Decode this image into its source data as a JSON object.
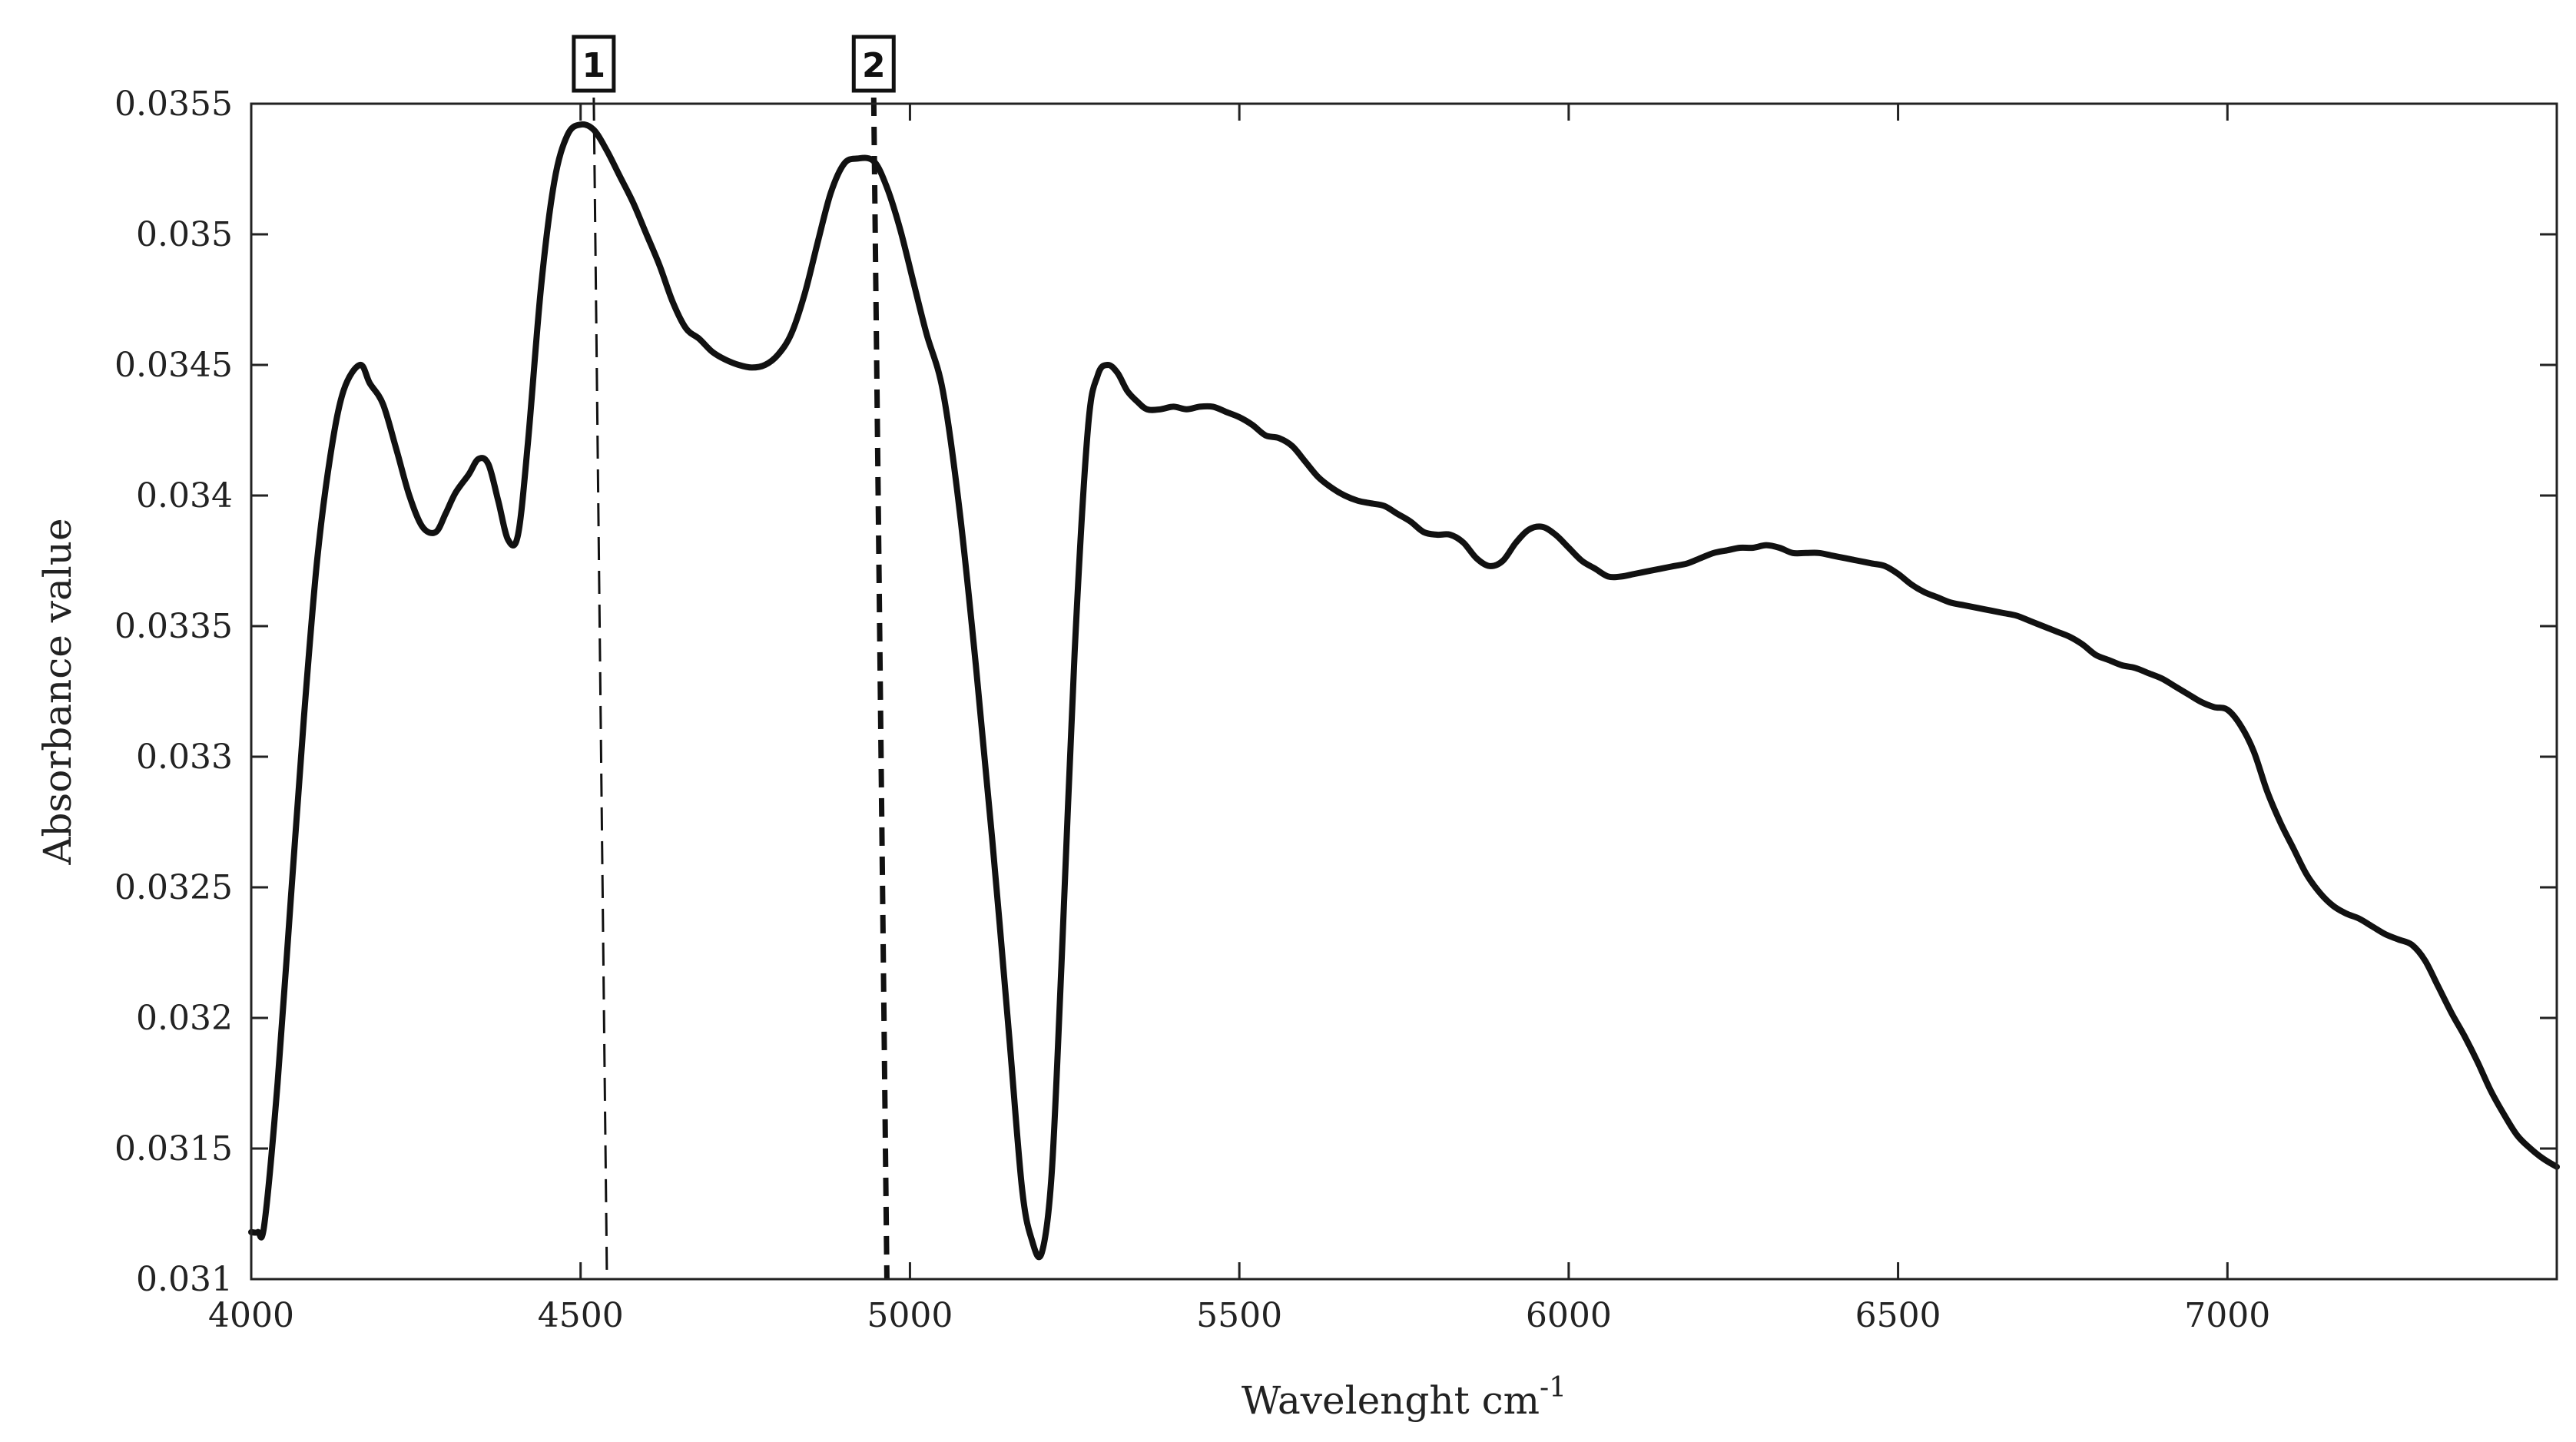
{
  "chart_data": {
    "type": "line",
    "xlabel": "Wavelenght cm",
    "xlabel_sup": "-1",
    "ylabel": "Absorbance value",
    "xlim": [
      4000,
      7500
    ],
    "ylim": [
      0.031,
      0.0355
    ],
    "x_ticks": [
      4000,
      4500,
      5000,
      5500,
      6000,
      6500,
      7000
    ],
    "x_tick_labels": [
      "4000",
      "4500",
      "5000",
      "5500",
      "6000",
      "6500",
      "7000"
    ],
    "y_ticks": [
      0.031,
      0.0315,
      0.032,
      0.0325,
      0.033,
      0.0335,
      0.034,
      0.0345,
      0.035,
      0.0355
    ],
    "y_tick_labels": [
      "0.031",
      "0.0315",
      "0.032",
      "0.0325",
      "0.033",
      "0.0335",
      "0.034",
      "0.0345",
      "0.035",
      "0.0355"
    ],
    "grid": false,
    "line_color": "#111111",
    "series": [
      {
        "x": [
          4000,
          4010,
          4020,
          4040,
          4060,
          4080,
          4100,
          4120,
          4140,
          4165,
          4180,
          4200,
          4220,
          4240,
          4260,
          4280,
          4295,
          4310,
          4330,
          4345,
          4360,
          4375,
          4390,
          4405,
          4420,
          4440,
          4460,
          4480,
          4500,
          4520,
          4540,
          4560,
          4580,
          4600,
          4620,
          4640,
          4660,
          4680,
          4700,
          4720,
          4740,
          4760,
          4780,
          4800,
          4820,
          4840,
          4860,
          4880,
          4900,
          4920,
          4945,
          4965,
          4985,
          5005,
          5025,
          5050,
          5075,
          5100,
          5125,
          5150,
          5170,
          5185,
          5200,
          5215,
          5230,
          5250,
          5270,
          5285,
          5300,
          5315,
          5330,
          5345,
          5360,
          5380,
          5400,
          5420,
          5440,
          5460,
          5480,
          5500,
          5520,
          5540,
          5560,
          5580,
          5600,
          5620,
          5640,
          5660,
          5680,
          5700,
          5720,
          5740,
          5760,
          5780,
          5800,
          5820,
          5840,
          5860,
          5880,
          5900,
          5920,
          5940,
          5960,
          5980,
          6000,
          6020,
          6040,
          6060,
          6080,
          6100,
          6120,
          6140,
          6160,
          6180,
          6200,
          6220,
          6240,
          6260,
          6280,
          6300,
          6320,
          6340,
          6360,
          6380,
          6400,
          6420,
          6440,
          6460,
          6480,
          6500,
          6520,
          6540,
          6560,
          6580,
          6600,
          6620,
          6640,
          6660,
          6680,
          6700,
          6720,
          6740,
          6760,
          6780,
          6800,
          6820,
          6840,
          6860,
          6880,
          6900,
          6920,
          6940,
          6960,
          6980,
          7000,
          7020,
          7040,
          7060,
          7080,
          7100,
          7120,
          7140,
          7160,
          7180,
          7200,
          7220,
          7240,
          7260,
          7280,
          7300,
          7320,
          7340,
          7360,
          7380,
          7400,
          7420,
          7440,
          7460,
          7480,
          7500
        ],
        "y": [
          0.03118,
          0.03118,
          0.03121,
          0.03175,
          0.03245,
          0.03315,
          0.03375,
          0.03415,
          0.0344,
          0.0345,
          0.03443,
          0.03435,
          0.03418,
          0.034,
          0.03388,
          0.03386,
          0.03393,
          0.03401,
          0.03408,
          0.03414,
          0.03412,
          0.03398,
          0.03383,
          0.03385,
          0.0342,
          0.0348,
          0.0352,
          0.03538,
          0.03542,
          0.0354,
          0.03532,
          0.03522,
          0.03512,
          0.035,
          0.03488,
          0.03474,
          0.03464,
          0.0346,
          0.03455,
          0.03452,
          0.0345,
          0.03449,
          0.0345,
          0.03454,
          0.03462,
          0.03477,
          0.03497,
          0.03516,
          0.03527,
          0.03529,
          0.03528,
          0.03518,
          0.03502,
          0.03482,
          0.03462,
          0.0344,
          0.03395,
          0.03335,
          0.03268,
          0.03195,
          0.03135,
          0.03115,
          0.0311,
          0.0314,
          0.0322,
          0.0334,
          0.03425,
          0.03446,
          0.0345,
          0.03447,
          0.0344,
          0.03436,
          0.03433,
          0.03433,
          0.03434,
          0.03433,
          0.03434,
          0.03434,
          0.03432,
          0.0343,
          0.03427,
          0.03423,
          0.03422,
          0.03419,
          0.03413,
          0.03407,
          0.03403,
          0.034,
          0.03398,
          0.03397,
          0.03396,
          0.03393,
          0.0339,
          0.03386,
          0.03385,
          0.03385,
          0.03382,
          0.03376,
          0.03373,
          0.03375,
          0.03382,
          0.03387,
          0.03388,
          0.03385,
          0.0338,
          0.03375,
          0.03372,
          0.03369,
          0.03369,
          0.0337,
          0.03371,
          0.03372,
          0.03373,
          0.03374,
          0.03376,
          0.03378,
          0.03379,
          0.0338,
          0.0338,
          0.03381,
          0.0338,
          0.03378,
          0.03378,
          0.03378,
          0.03377,
          0.03376,
          0.03375,
          0.03374,
          0.03373,
          0.0337,
          0.03366,
          0.03363,
          0.03361,
          0.03359,
          0.03358,
          0.03357,
          0.03356,
          0.03355,
          0.03354,
          0.03352,
          0.0335,
          0.03348,
          0.03346,
          0.03343,
          0.03339,
          0.03337,
          0.03335,
          0.03334,
          0.03332,
          0.0333,
          0.03327,
          0.03324,
          0.03321,
          0.03319,
          0.03318,
          0.03312,
          0.03302,
          0.03287,
          0.03275,
          0.03265,
          0.03255,
          0.03248,
          0.03243,
          0.0324,
          0.03238,
          0.03235,
          0.03232,
          0.0323,
          0.03228,
          0.03222,
          0.03212,
          0.03202,
          0.03193,
          0.03183,
          0.03172,
          0.03163,
          0.03155,
          0.0315,
          0.03146,
          0.03143
        ]
      }
    ],
    "annotations": [
      {
        "label": "1",
        "x": 4520,
        "x_bottom": 4540,
        "style": "dashed-thin"
      },
      {
        "label": "2",
        "x": 4945,
        "x_bottom": 4965,
        "style": "dashed-thick"
      }
    ]
  }
}
